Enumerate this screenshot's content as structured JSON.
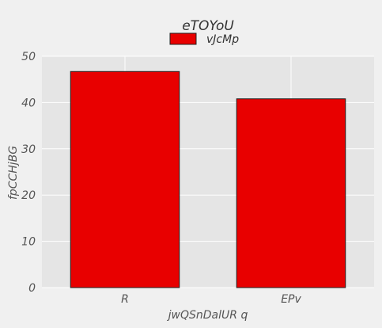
{
  "chart_data": {
    "type": "bar",
    "title": "eTOYoU",
    "xlabel": "jwQSnDalUR q",
    "ylabel": "fpCCHjBG",
    "categories": [
      "R",
      "EPv"
    ],
    "series": [
      {
        "name": "vJcMp",
        "values": [
          46.7,
          40.8
        ],
        "color": "#e80000"
      }
    ],
    "ylim": [
      0,
      50
    ],
    "yticks": [
      0,
      10,
      20,
      30,
      40,
      50
    ],
    "grid": true,
    "legend_position": "top-center",
    "colors": {
      "background": "#f0f0f0",
      "plot_background": "#e5e5e5",
      "grid": "#ffffff",
      "bar_edge": "#222222"
    }
  }
}
